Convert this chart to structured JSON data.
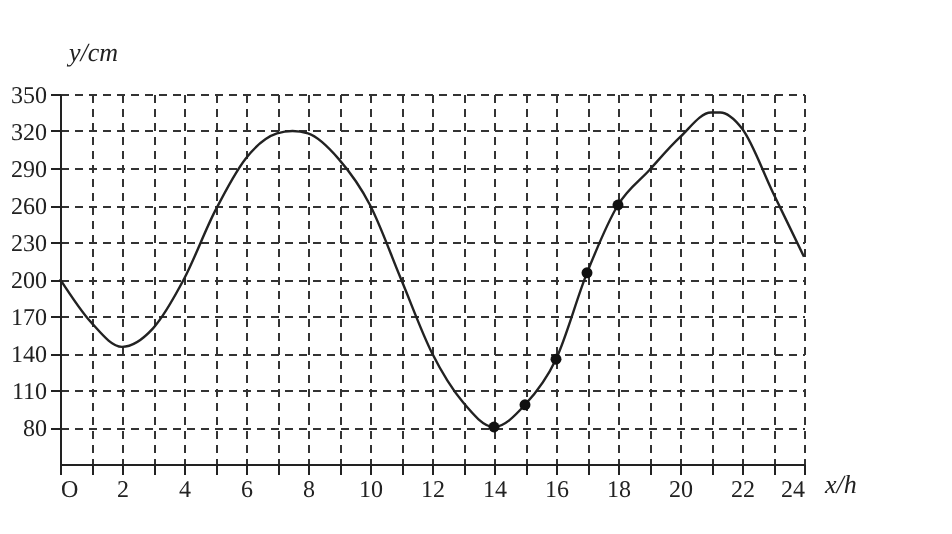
{
  "chart_data": {
    "type": "line",
    "xlabel": "x/h",
    "ylabel": "y/cm",
    "xlim": [
      0,
      24
    ],
    "ylim": [
      50,
      350
    ],
    "xticks": [
      {
        "value": 0,
        "label": "O"
      },
      {
        "value": 1,
        "label": null
      },
      2,
      {
        "value": 3,
        "label": null
      },
      4,
      {
        "value": 5,
        "label": null
      },
      6,
      {
        "value": 7,
        "label": null
      },
      8,
      {
        "value": 9,
        "label": null
      },
      10,
      {
        "value": 11,
        "label": null
      },
      12,
      {
        "value": 13,
        "label": null
      },
      14,
      {
        "value": 15,
        "label": null
      },
      16,
      {
        "value": 17,
        "label": null
      },
      18,
      {
        "value": 19,
        "label": null
      },
      20,
      {
        "value": 21,
        "label": null
      },
      22,
      {
        "value": 23,
        "label": null
      },
      24
    ],
    "yticks": [
      80,
      110,
      140,
      170,
      200,
      230,
      260,
      290,
      320,
      350
    ],
    "grid": true,
    "line_style": "solid",
    "series": [
      {
        "type": "line",
        "color": "#222222",
        "marker": "none",
        "x": [
          0,
          1,
          2,
          3,
          4,
          5,
          6,
          7,
          7.5,
          8,
          9,
          10,
          11,
          12,
          13,
          14,
          15,
          16,
          17,
          18,
          19,
          20,
          21,
          21.3,
          22,
          23,
          24
        ],
        "values": [
          200,
          165,
          145,
          160,
          200,
          255,
          298,
          318,
          320,
          318,
          297,
          260,
          200,
          140,
          100,
          80,
          98,
          135,
          205,
          260,
          288,
          315,
          335,
          335,
          322,
          270,
          218
        ]
      },
      {
        "type": "scatter",
        "color": "#111111",
        "marker": "circle",
        "x": [
          14,
          15,
          16,
          17,
          18
        ],
        "values": [
          80,
          98,
          135,
          205,
          260
        ]
      }
    ]
  }
}
